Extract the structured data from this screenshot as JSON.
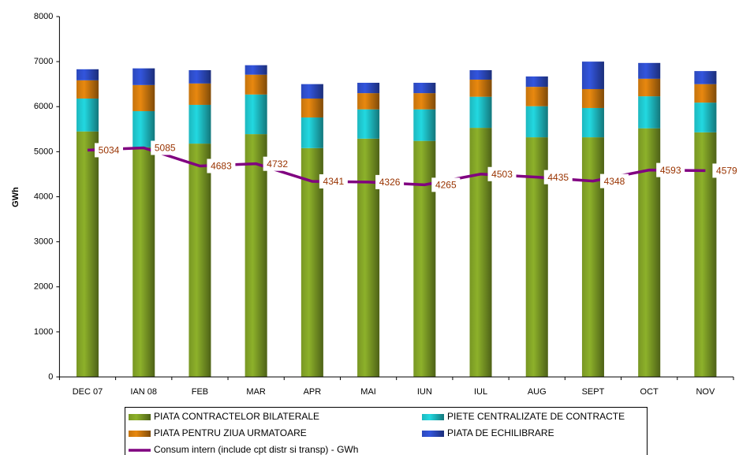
{
  "chart_data": {
    "type": "bar",
    "y_label": "GWh",
    "categories": [
      "DEC 07",
      "IAN 08",
      "FEB",
      "MAR",
      "APR",
      "MAI",
      "IUN",
      "IUL",
      "AUG",
      "SEPT",
      "OCT",
      "NOV"
    ],
    "ylim": [
      0,
      8000
    ],
    "yticks": [
      0,
      1000,
      2000,
      3000,
      4000,
      5000,
      6000,
      7000,
      8000
    ],
    "grid": false,
    "series": [
      {
        "name": "PIATA CONTRACTELOR BILATERALE",
        "type": "bar",
        "color": "#8db12a",
        "values": [
          5450,
          5100,
          5180,
          5390,
          5080,
          5290,
          5240,
          5530,
          5320,
          5320,
          5520,
          5430
        ]
      },
      {
        "name": "PIETE CENTRALIZATE DE CONTRACTE",
        "type": "bar",
        "color": "#22d8e0",
        "values": [
          730,
          800,
          860,
          880,
          680,
          650,
          700,
          690,
          690,
          650,
          710,
          660
        ]
      },
      {
        "name": "PIATA PENTRU ZIUA URMATOARE",
        "type": "bar",
        "color": "#e8880f",
        "values": [
          405,
          580,
          475,
          440,
          420,
          360,
          360,
          380,
          430,
          420,
          390,
          410
        ]
      },
      {
        "name": "PIATA DE ECHILIBRARE",
        "type": "bar",
        "color": "#3355dd",
        "values": [
          245,
          370,
          295,
          210,
          320,
          230,
          230,
          210,
          230,
          610,
          350,
          290
        ]
      },
      {
        "name": "Consum intern (include cpt distr si transp) - GWh",
        "type": "line",
        "color": "#800080",
        "label_color": "#993300",
        "values": [
          5034,
          5085,
          4683,
          4732,
          4341,
          4326,
          4265,
          4503,
          4435,
          4348,
          4593,
          4579
        ]
      }
    ]
  }
}
